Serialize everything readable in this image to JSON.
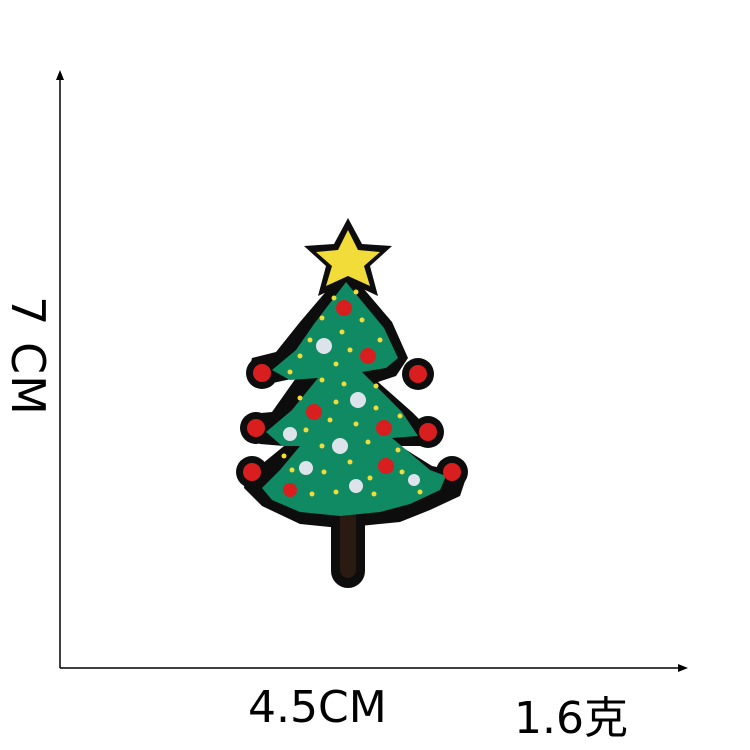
{
  "measurements": {
    "height": "7 CM",
    "width": "4.5CM",
    "weight": "1.6克"
  },
  "product": {
    "subject": "christmas-tree-embroidered-patch",
    "colors": {
      "border": "#0d0d0d",
      "tree_green": "#0f8a62",
      "star_yellow": "#f2dc3a",
      "ornament_red": "#d81e1e",
      "ornament_white": "#dde3ea",
      "trunk": "#2b1a12"
    }
  }
}
